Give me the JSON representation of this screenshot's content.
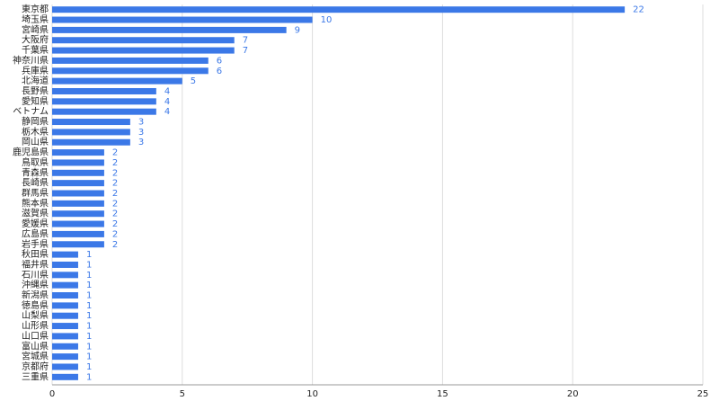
{
  "chart_data": {
    "type": "bar",
    "orientation": "horizontal",
    "categories": [
      "東京都",
      "埼玉県",
      "宮崎県",
      "大阪府",
      "千葉県",
      "神奈川県",
      "兵庫県",
      "北海道",
      "長野県",
      "愛知県",
      "ベトナム",
      "静岡県",
      "栃木県",
      "岡山県",
      "鹿児島県",
      "鳥取県",
      "青森県",
      "長崎県",
      "群馬県",
      "熊本県",
      "滋賀県",
      "愛媛県",
      "広島県",
      "岩手県",
      "秋田県",
      "福井県",
      "石川県",
      "沖縄県",
      "新潟県",
      "徳島県",
      "山梨県",
      "山形県",
      "山口県",
      "富山県",
      "宮城県",
      "京都府",
      "三重県"
    ],
    "values": [
      22,
      10,
      9,
      7,
      7,
      6,
      6,
      5,
      4,
      4,
      4,
      3,
      3,
      3,
      2,
      2,
      2,
      2,
      2,
      2,
      2,
      2,
      2,
      2,
      1,
      1,
      1,
      1,
      1,
      1,
      1,
      1,
      1,
      1,
      1,
      1,
      1
    ],
    "color": "#3b78e7",
    "xlim": [
      0,
      25
    ],
    "xticks": [
      0,
      5,
      10,
      15,
      20,
      25
    ],
    "grid": true
  }
}
